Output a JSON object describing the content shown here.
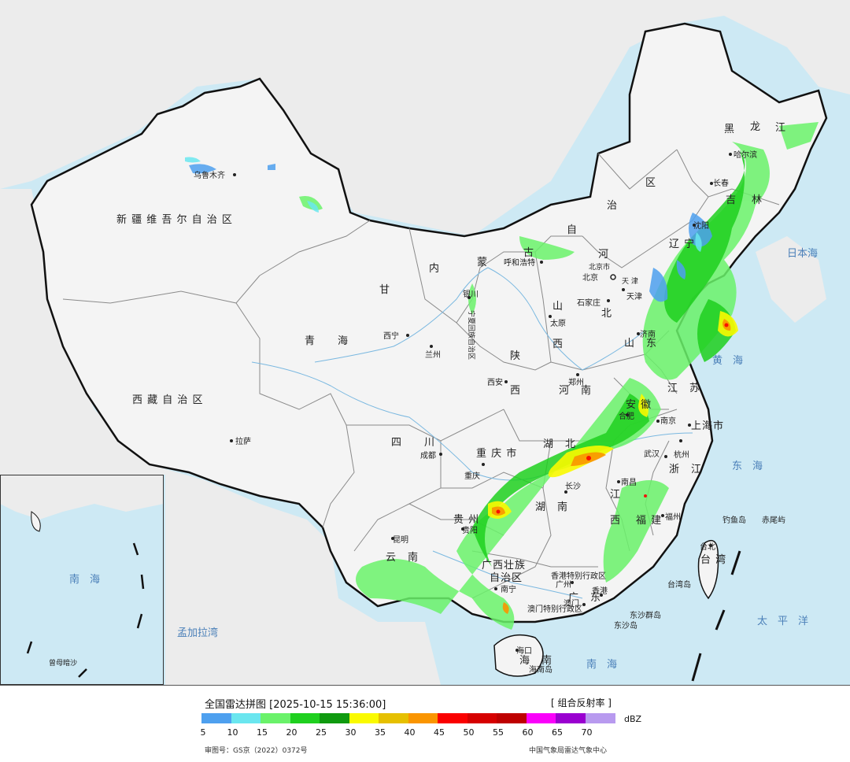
{
  "title": "全国雷达拼图 [2025-10-15 15:36:00]",
  "product": "[ 组合反射率 ]",
  "unit": "dBZ",
  "approval": "审图号：GS京（2022）0372号",
  "agency": "中国气象局雷达气象中心",
  "legend": {
    "ticks": [
      "5",
      "10",
      "15",
      "20",
      "25",
      "30",
      "35",
      "40",
      "45",
      "50",
      "55",
      "60",
      "65",
      "70"
    ],
    "colors": [
      "#4ea0ef",
      "#6ae6ef",
      "#6af26a",
      "#1fd01f",
      "#0f9a0f",
      "#fafa00",
      "#e6c000",
      "#fa9500",
      "#fa0000",
      "#d60000",
      "#be0000",
      "#fa00fa",
      "#9a00d0",
      "#b89aef"
    ]
  },
  "colors": {
    "land": "#f4f4f4",
    "sea": "#cde9f4",
    "border": "#111111",
    "province": "#8a8a8a"
  },
  "labels": {
    "xinjiang": "新 疆 维 吾 尔 自 治 区",
    "xizang": "西 藏 自 治 区",
    "qinghai": "青　　海",
    "gansu": "甘",
    "neimenggu_nei": "内",
    "neimenggu_meng": "蒙",
    "neimenggu_gu": "古",
    "neimenggu_zi": "自",
    "neimenggu_zhi": "治",
    "neimenggu_qu": "区",
    "heilongjiang_hei": "黑",
    "heilongjiang_long": "龙",
    "heilongjiang_jiang": "江",
    "jilin_ji": "吉",
    "jilin_lin": "林",
    "liaoning": "辽 宁",
    "hebei_he": "河",
    "hebei_bei": "北",
    "shanxi_shan": "山",
    "shanxi_xi": "西",
    "shaanxi_shan": "陕",
    "shaanxi_xi": "西",
    "henan": "河　南",
    "shandong": "山　东",
    "jiangsu": "江　苏",
    "anhui": "安 徽",
    "hubei": "湖　北",
    "hunan": "湖　南",
    "jiangxi_jiang": "江",
    "jiangxi_xi": "西",
    "zhejiang": "浙　江",
    "fujian": "福 建",
    "guangdong": "广　东",
    "guangxi": "广西壮族",
    "guangxi2": "自治区",
    "sichuan": "四　　川",
    "chongqing": "重 庆 市",
    "guizhou": "贵 州",
    "yunnan": "云　南",
    "hainan": "海　南",
    "taiwan": "台 湾",
    "ningxia": "宁夏回族自治区",
    "shanghai": "上海市",
    "beijing": "北京市",
    "tianjin": "天 津",
    "hongkong": "香港特别行政区",
    "macau": "澳门特别行政区",
    "wulumuqi": "乌鲁木齐",
    "lasa": "拉萨",
    "xining": "西宁",
    "lanzhou": "兰州",
    "yinchuan": "银川",
    "huhehaote": "呼和浩特",
    "beijing_city": "北京",
    "tianjin_city": "天津",
    "shijiazhuang": "石家庄",
    "taiyuan": "太原",
    "jinan": "济南",
    "zhengzhou": "郑州",
    "xian": "西安",
    "chengdu": "成都",
    "chongqing_city": "重庆",
    "wuhan": "武汉",
    "changsha": "长沙",
    "nanchang": "南昌",
    "hefei": "合肥",
    "nanjing": "南京",
    "shanghai_city": "上海",
    "hangzhou": "杭州",
    "fuzhou": "福州",
    "guangzhou": "广州",
    "hong_kong": "香港",
    "aomen": "澳门",
    "nanning": "南宁",
    "guiyang": "贵阳",
    "kunming": "昆明",
    "haikou": "海口",
    "taibei": "台北",
    "haerbin": "哈尔滨",
    "changchun": "长春",
    "shenyang": "沈阳",
    "diaoyudao": "钓鱼岛",
    "chiweiyu": "赤尾屿",
    "dongshaqundao": "东沙群岛",
    "dongshadao": "东沙岛",
    "taiwan_strait": "台湾岛",
    "hainandao": "海南岛",
    "riben_hai": "日本海",
    "huanghai": "黄　海",
    "donghai": "东　海",
    "nanhai": "南　海",
    "taipingyang": "太　平　洋",
    "mengjialawan": "孟加拉湾",
    "inset_nanhai": "南　海",
    "inset_zengmu": "曾母暗沙"
  }
}
